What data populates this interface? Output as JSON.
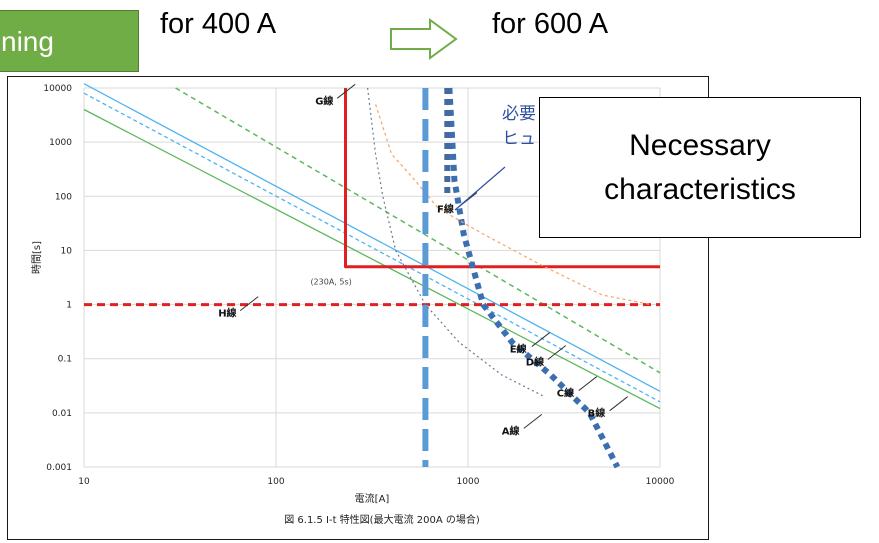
{
  "header": {
    "tag_text": "ning",
    "label_left": "for 400 A",
    "label_right": "for 600 A",
    "arrow_color": "#70ad47"
  },
  "callout": {
    "line1": "Necessary",
    "line2": "characteristics",
    "hidden_jp_1": "必要",
    "hidden_jp_2": "ヒュ"
  },
  "chart_data": {
    "type": "line",
    "xscale": "log",
    "yscale": "log",
    "xlim": [
      10,
      10000
    ],
    "ylim": [
      0.001,
      10000
    ],
    "xlabel": "電流[A]",
    "ylabel": "時間[s]",
    "caption": "図 6.1.5 I-t 特性図(最大電流 200A の場合)",
    "xticks": [
      "10",
      "100",
      "1000",
      "10000"
    ],
    "yticks": [
      "10000",
      "1000",
      "100",
      "10",
      "1",
      "0.1",
      "0.01",
      "0.001"
    ],
    "point_annotation": "(230A, 5s)",
    "series": [
      {
        "name": "B線",
        "color": "#5cb85c",
        "dash": "solid",
        "x": [
          10,
          10000
        ],
        "y": [
          4000,
          0.012
        ]
      },
      {
        "name": "C線",
        "color": "#4fb3f0",
        "dash": "dashed",
        "x": [
          10,
          10000
        ],
        "y": [
          8000,
          0.016
        ]
      },
      {
        "name": "D線",
        "color": "#4fb3f0",
        "dash": "solid",
        "x": [
          10,
          10000
        ],
        "y": [
          12000,
          0.025
        ]
      },
      {
        "name": "E線",
        "color": "#5cb85c",
        "dash": "dashed",
        "x": [
          30,
          10000
        ],
        "y": [
          10000,
          0.055
        ]
      },
      {
        "name": "G線",
        "color": "#e02020",
        "dash": "solid",
        "x": [
          230,
          230,
          10000,
          10000
        ],
        "y": [
          10000,
          5,
          5,
          5
        ]
      },
      {
        "name": "H線",
        "color": "#e02020",
        "dash": "dashed",
        "x": [
          10,
          10000
        ],
        "y": [
          1,
          1
        ]
      },
      {
        "name": "A線",
        "color": "#3c6fb0",
        "dash": "dotted",
        "x": [
          800,
          850,
          950,
          1200,
          1700,
          2700,
          4300,
          6000
        ],
        "y": [
          10000,
          200,
          20,
          1,
          0.2,
          0.05,
          0.01,
          0.001
        ]
      },
      {
        "name": "F線",
        "color": "#f4a46a",
        "dash": "dotted",
        "x": [
          330,
          400,
          500,
          700,
          1200,
          2500,
          5000,
          9000
        ],
        "y": [
          5000,
          600,
          250,
          60,
          20,
          5,
          1.5,
          1
        ]
      },
      {
        "name": "for 400 A",
        "color": "#5b9bd5",
        "dash": "dashed",
        "x": [
          600,
          600
        ],
        "y": [
          10000,
          0.001
        ]
      },
      {
        "name": "for 600 A",
        "color": "#44689f",
        "dash": "dotted",
        "x": [
          780,
          780
        ],
        "y": [
          10000,
          100
        ]
      },
      {
        "name": "",
        "color": "#6a7a90",
        "dash": "dotted",
        "x": [
          300,
          330,
          360,
          420,
          600,
          900,
          1500,
          2500
        ],
        "y": [
          10000,
          600,
          100,
          10,
          1,
          0.2,
          0.05,
          0.02
        ]
      }
    ],
    "line_labels": [
      {
        "text": "G線",
        "x": 160,
        "y": 5000
      },
      {
        "text": "F線",
        "x": 690,
        "y": 50
      },
      {
        "text": "H線",
        "x": 50,
        "y": 0.6
      },
      {
        "text": "E線",
        "x": 1650,
        "y": 0.13
      },
      {
        "text": "D線",
        "x": 2000,
        "y": 0.075
      },
      {
        "text": "C線",
        "x": 2900,
        "y": 0.02
      },
      {
        "text": "B線",
        "x": 4200,
        "y": 0.0085
      },
      {
        "text": "A線",
        "x": 1500,
        "y": 0.004
      }
    ]
  }
}
